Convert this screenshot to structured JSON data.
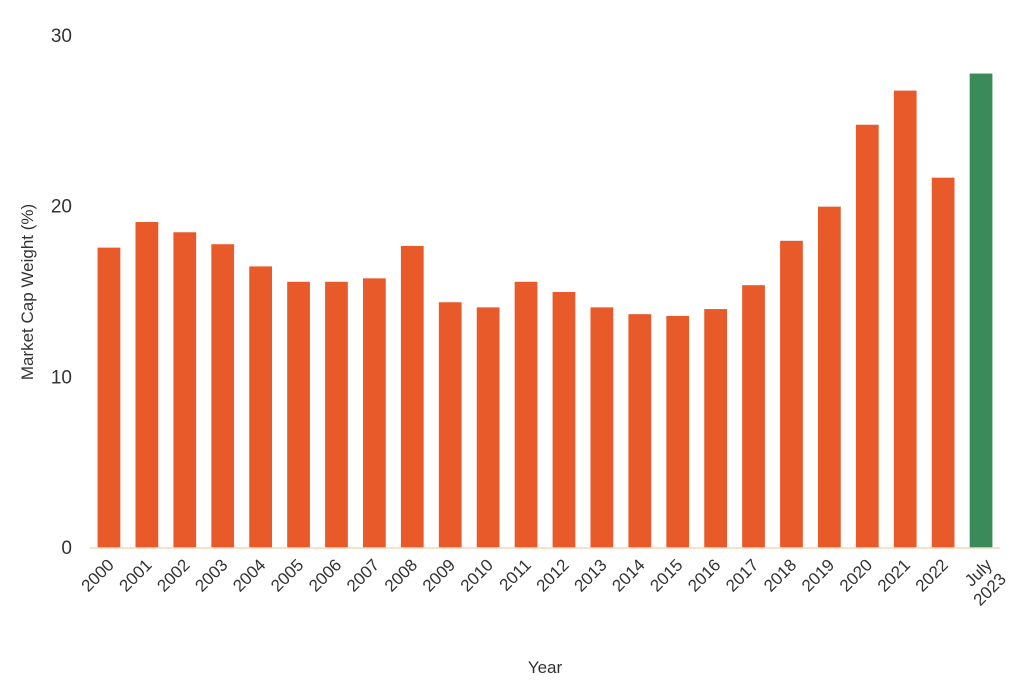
{
  "chart_data": {
    "type": "bar",
    "title": "",
    "xlabel": "Year",
    "ylabel": "Market Cap Weight (%)",
    "ylim": [
      0,
      30
    ],
    "yticks": [
      0,
      10,
      20,
      30
    ],
    "grid": false,
    "legend": "none",
    "categories": [
      "2000",
      "2001",
      "2002",
      "2003",
      "2004",
      "2005",
      "2006",
      "2007",
      "2008",
      "2009",
      "2010",
      "2011",
      "2012",
      "2013",
      "2014",
      "2015",
      "2016",
      "2017",
      "2018",
      "2019",
      "2020",
      "2021",
      "2022",
      "July 2023"
    ],
    "values": [
      17.6,
      19.1,
      18.5,
      17.8,
      16.5,
      15.6,
      15.6,
      15.8,
      17.7,
      14.4,
      14.1,
      15.6,
      15.0,
      14.1,
      13.7,
      13.6,
      14.0,
      15.4,
      18.0,
      20.0,
      24.8,
      26.8,
      21.7,
      27.8
    ],
    "colors": {
      "default": "#e85a2a",
      "highlight": "#3a8a5a",
      "axis": "#f5d7b8"
    },
    "highlight_index": 23
  }
}
